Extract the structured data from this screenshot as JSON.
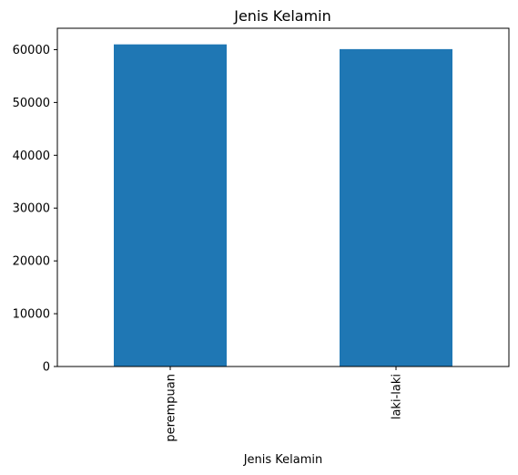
{
  "chart_data": {
    "type": "bar",
    "title": "Jenis Kelamin",
    "xlabel": "Jenis Kelamin",
    "ylabel": "",
    "categories": [
      "perempuan",
      "laki-laki"
    ],
    "values": [
      61000,
      60100
    ],
    "ylim": [
      0,
      64050
    ],
    "yticks": [
      0,
      10000,
      20000,
      30000,
      40000,
      50000,
      60000
    ],
    "ytick_labels": [
      "0",
      "10000",
      "20000",
      "30000",
      "40000",
      "50000",
      "60000"
    ],
    "bar_color": "#1f77b4",
    "grid": false,
    "legend": "none"
  }
}
